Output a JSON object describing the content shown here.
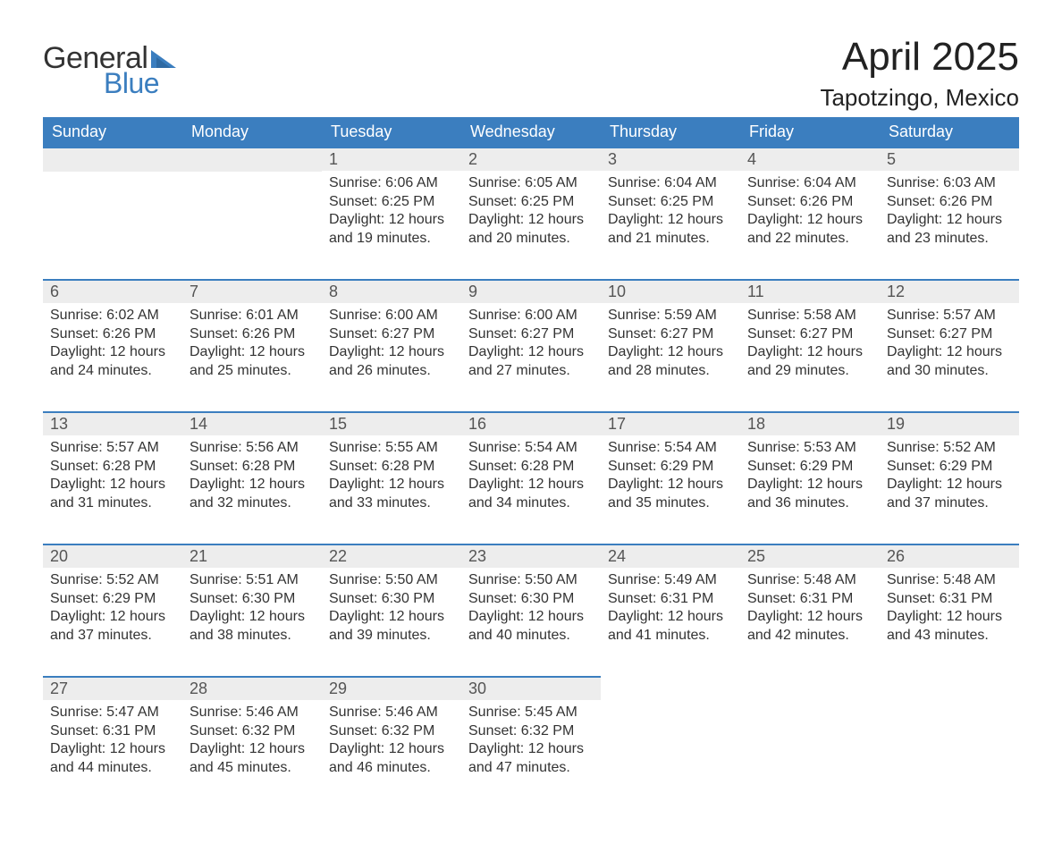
{
  "logo": {
    "text1": "General",
    "text2": "Blue",
    "accent_color": "#3b7ebf"
  },
  "header": {
    "month_title": "April 2025",
    "location": "Tapotzingo, Mexico"
  },
  "dayNames": [
    "Sunday",
    "Monday",
    "Tuesday",
    "Wednesday",
    "Thursday",
    "Friday",
    "Saturday"
  ],
  "colors": {
    "header_bg": "#3b7ebf",
    "header_text": "#ffffff",
    "daybar_bg": "#ededed",
    "daybar_border": "#3b7ebf",
    "body_text": "#333333",
    "background": "#ffffff"
  },
  "typography": {
    "month_title_fontsize": 44,
    "location_fontsize": 26,
    "dayname_fontsize": 18,
    "daynum_fontsize": 18,
    "body_fontsize": 16
  },
  "layout": {
    "startWeekday": 2,
    "daysInMonth": 30,
    "columns": 7,
    "rows": 5
  },
  "days": [
    {
      "n": 1,
      "sunrise": "6:06 AM",
      "sunset": "6:25 PM",
      "daylight": "12 hours and 19 minutes."
    },
    {
      "n": 2,
      "sunrise": "6:05 AM",
      "sunset": "6:25 PM",
      "daylight": "12 hours and 20 minutes."
    },
    {
      "n": 3,
      "sunrise": "6:04 AM",
      "sunset": "6:25 PM",
      "daylight": "12 hours and 21 minutes."
    },
    {
      "n": 4,
      "sunrise": "6:04 AM",
      "sunset": "6:26 PM",
      "daylight": "12 hours and 22 minutes."
    },
    {
      "n": 5,
      "sunrise": "6:03 AM",
      "sunset": "6:26 PM",
      "daylight": "12 hours and 23 minutes."
    },
    {
      "n": 6,
      "sunrise": "6:02 AM",
      "sunset": "6:26 PM",
      "daylight": "12 hours and 24 minutes."
    },
    {
      "n": 7,
      "sunrise": "6:01 AM",
      "sunset": "6:26 PM",
      "daylight": "12 hours and 25 minutes."
    },
    {
      "n": 8,
      "sunrise": "6:00 AM",
      "sunset": "6:27 PM",
      "daylight": "12 hours and 26 minutes."
    },
    {
      "n": 9,
      "sunrise": "6:00 AM",
      "sunset": "6:27 PM",
      "daylight": "12 hours and 27 minutes."
    },
    {
      "n": 10,
      "sunrise": "5:59 AM",
      "sunset": "6:27 PM",
      "daylight": "12 hours and 28 minutes."
    },
    {
      "n": 11,
      "sunrise": "5:58 AM",
      "sunset": "6:27 PM",
      "daylight": "12 hours and 29 minutes."
    },
    {
      "n": 12,
      "sunrise": "5:57 AM",
      "sunset": "6:27 PM",
      "daylight": "12 hours and 30 minutes."
    },
    {
      "n": 13,
      "sunrise": "5:57 AM",
      "sunset": "6:28 PM",
      "daylight": "12 hours and 31 minutes."
    },
    {
      "n": 14,
      "sunrise": "5:56 AM",
      "sunset": "6:28 PM",
      "daylight": "12 hours and 32 minutes."
    },
    {
      "n": 15,
      "sunrise": "5:55 AM",
      "sunset": "6:28 PM",
      "daylight": "12 hours and 33 minutes."
    },
    {
      "n": 16,
      "sunrise": "5:54 AM",
      "sunset": "6:28 PM",
      "daylight": "12 hours and 34 minutes."
    },
    {
      "n": 17,
      "sunrise": "5:54 AM",
      "sunset": "6:29 PM",
      "daylight": "12 hours and 35 minutes."
    },
    {
      "n": 18,
      "sunrise": "5:53 AM",
      "sunset": "6:29 PM",
      "daylight": "12 hours and 36 minutes."
    },
    {
      "n": 19,
      "sunrise": "5:52 AM",
      "sunset": "6:29 PM",
      "daylight": "12 hours and 37 minutes."
    },
    {
      "n": 20,
      "sunrise": "5:52 AM",
      "sunset": "6:29 PM",
      "daylight": "12 hours and 37 minutes."
    },
    {
      "n": 21,
      "sunrise": "5:51 AM",
      "sunset": "6:30 PM",
      "daylight": "12 hours and 38 minutes."
    },
    {
      "n": 22,
      "sunrise": "5:50 AM",
      "sunset": "6:30 PM",
      "daylight": "12 hours and 39 minutes."
    },
    {
      "n": 23,
      "sunrise": "5:50 AM",
      "sunset": "6:30 PM",
      "daylight": "12 hours and 40 minutes."
    },
    {
      "n": 24,
      "sunrise": "5:49 AM",
      "sunset": "6:31 PM",
      "daylight": "12 hours and 41 minutes."
    },
    {
      "n": 25,
      "sunrise": "5:48 AM",
      "sunset": "6:31 PM",
      "daylight": "12 hours and 42 minutes."
    },
    {
      "n": 26,
      "sunrise": "5:48 AM",
      "sunset": "6:31 PM",
      "daylight": "12 hours and 43 minutes."
    },
    {
      "n": 27,
      "sunrise": "5:47 AM",
      "sunset": "6:31 PM",
      "daylight": "12 hours and 44 minutes."
    },
    {
      "n": 28,
      "sunrise": "5:46 AM",
      "sunset": "6:32 PM",
      "daylight": "12 hours and 45 minutes."
    },
    {
      "n": 29,
      "sunrise": "5:46 AM",
      "sunset": "6:32 PM",
      "daylight": "12 hours and 46 minutes."
    },
    {
      "n": 30,
      "sunrise": "5:45 AM",
      "sunset": "6:32 PM",
      "daylight": "12 hours and 47 minutes."
    }
  ],
  "labels": {
    "sunrise_prefix": "Sunrise: ",
    "sunset_prefix": "Sunset: ",
    "daylight_prefix": "Daylight: "
  }
}
